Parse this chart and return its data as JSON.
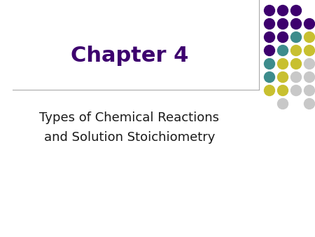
{
  "title": "Chapter 4",
  "subtitle_line1": "Types of Chemical Reactions",
  "subtitle_line2": "and Solution Stoichiometry",
  "title_color": "#3d006e",
  "subtitle_color": "#1a1a1a",
  "background_color": "#ffffff",
  "divider_color": "#aaaaaa",
  "title_fontsize": 22,
  "subtitle_fontsize": 13,
  "dot_pattern": [
    {
      "row": 0,
      "cols": [
        0,
        1,
        2
      ],
      "colors": [
        "#3d006e",
        "#3d006e",
        "#3d006e"
      ]
    },
    {
      "row": 1,
      "cols": [
        0,
        1,
        2,
        3
      ],
      "colors": [
        "#3d006e",
        "#3d006e",
        "#3d006e",
        "#3d006e"
      ]
    },
    {
      "row": 2,
      "cols": [
        0,
        1,
        2,
        3
      ],
      "colors": [
        "#3d006e",
        "#3d006e",
        "#3d8c8c",
        "#c8c030"
      ]
    },
    {
      "row": 3,
      "cols": [
        0,
        1,
        2,
        3
      ],
      "colors": [
        "#3d006e",
        "#3d8c8c",
        "#c8c030",
        "#c8c030"
      ]
    },
    {
      "row": 4,
      "cols": [
        0,
        1,
        2,
        3
      ],
      "colors": [
        "#3d8c8c",
        "#c8c030",
        "#c8c030",
        "#c8c8c8"
      ]
    },
    {
      "row": 5,
      "cols": [
        0,
        1,
        2,
        3
      ],
      "colors": [
        "#3d8c8c",
        "#c8c030",
        "#c8c8c8",
        "#c8c8c8"
      ]
    },
    {
      "row": 6,
      "cols": [
        0,
        1,
        2,
        3
      ],
      "colors": [
        "#c8c030",
        "#c8c030",
        "#c8c8c8",
        "#c8c8c8"
      ]
    },
    {
      "row": 7,
      "cols": [
        1,
        3
      ],
      "colors": [
        "#c8c8c8",
        "#c8c8c8"
      ]
    }
  ]
}
